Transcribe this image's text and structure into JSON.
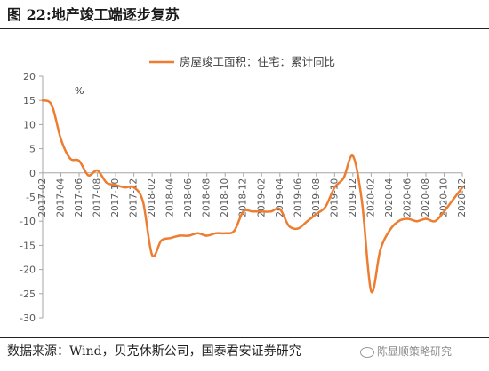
{
  "figure": {
    "title": "图 22:地产竣工端逐步复苏",
    "source": "数据来源：Wind，贝克休斯公司，国泰君安证券研究",
    "watermark": "陈显顺策略研究"
  },
  "chart_data": {
    "type": "line",
    "title": "",
    "unit_label": "%",
    "xlabel": "",
    "ylabel": "",
    "ylim": [
      -30,
      20
    ],
    "yticks": [
      20,
      15,
      10,
      5,
      0,
      -5,
      -10,
      -15,
      -20,
      -25,
      -30
    ],
    "grid": false,
    "legend_position": "top-center",
    "colors": {
      "series": "#ED7D31",
      "axis": "#A6A6A6",
      "tick_text": "#595959"
    },
    "xtick_labels": [
      "2017-02",
      "2017-04",
      "2017-06",
      "2017-08",
      "2017-10",
      "2017-12",
      "2018-02",
      "2018-04",
      "2018-06",
      "2018-08",
      "2018-10",
      "2018-12",
      "2019-02",
      "2019-04",
      "2019-06",
      "2019-08",
      "2019-10",
      "2019-12",
      "2020-02",
      "2020-04",
      "2020-06",
      "2020-08",
      "2020-10",
      "2020-12"
    ],
    "series": [
      {
        "name": "房屋竣工面积：住宅：累计同比",
        "x": [
          "2017-02",
          "2017-03",
          "2017-04",
          "2017-05",
          "2017-06",
          "2017-07",
          "2017-08",
          "2017-09",
          "2017-10",
          "2017-11",
          "2017-12",
          "2018-01",
          "2018-02",
          "2018-03",
          "2018-04",
          "2018-05",
          "2018-06",
          "2018-07",
          "2018-08",
          "2018-09",
          "2018-10",
          "2018-11",
          "2018-12",
          "2019-01",
          "2019-02",
          "2019-03",
          "2019-04",
          "2019-05",
          "2019-06",
          "2019-07",
          "2019-08",
          "2019-09",
          "2019-10",
          "2019-11",
          "2019-12",
          "2020-01",
          "2020-02",
          "2020-03",
          "2020-04",
          "2020-05",
          "2020-06",
          "2020-07",
          "2020-08",
          "2020-09",
          "2020-10",
          "2020-11",
          "2020-12"
        ],
        "values": [
          15,
          14,
          7,
          3,
          2.5,
          -0.5,
          0.5,
          -2,
          -2.5,
          -3,
          -3,
          -6,
          -17,
          -14,
          -13.5,
          -13,
          -13,
          -12.5,
          -13,
          -12.5,
          -12.5,
          -12,
          -8,
          -8,
          -8,
          -8,
          -7.5,
          -11,
          -11.5,
          -10,
          -8.5,
          -7,
          -3,
          -1,
          3.5,
          -6,
          -24.5,
          -16,
          -12,
          -10,
          -9.5,
          -10,
          -9.5,
          -10,
          -8,
          -5.5,
          -3
        ]
      }
    ]
  }
}
